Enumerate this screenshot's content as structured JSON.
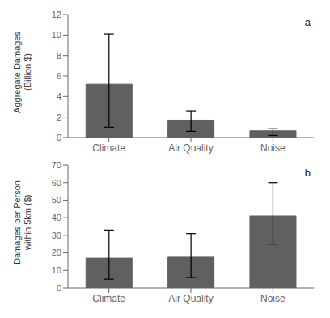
{
  "chart_data": [
    {
      "type": "bar",
      "categories": [
        "Climate",
        "Air Quality",
        "Noise"
      ],
      "values": [
        5.2,
        1.7,
        0.65
      ],
      "yerr_lower": [
        4.2,
        1.1,
        0.45
      ],
      "yerr_upper": [
        4.9,
        0.9,
        0.2
      ],
      "ylim": [
        0,
        12
      ],
      "yticks": [
        0,
        2,
        4,
        6,
        8,
        10,
        12
      ],
      "ylabel": "Aggregate Damages\n(Billion $)",
      "annotation": "a",
      "color": "#606060",
      "grid": false
    },
    {
      "type": "bar",
      "categories": [
        "Climate",
        "Air Quality",
        "Noise"
      ],
      "values": [
        17,
        18,
        41
      ],
      "yerr_lower": [
        12,
        12,
        16
      ],
      "yerr_upper": [
        16,
        13,
        19
      ],
      "ylim": [
        0,
        70
      ],
      "yticks": [
        0,
        10,
        20,
        30,
        40,
        50,
        60,
        70
      ],
      "ylabel": "Damages per Person\nwithin 5km ($)",
      "annotation": "b",
      "color": "#606060",
      "grid": false
    }
  ]
}
